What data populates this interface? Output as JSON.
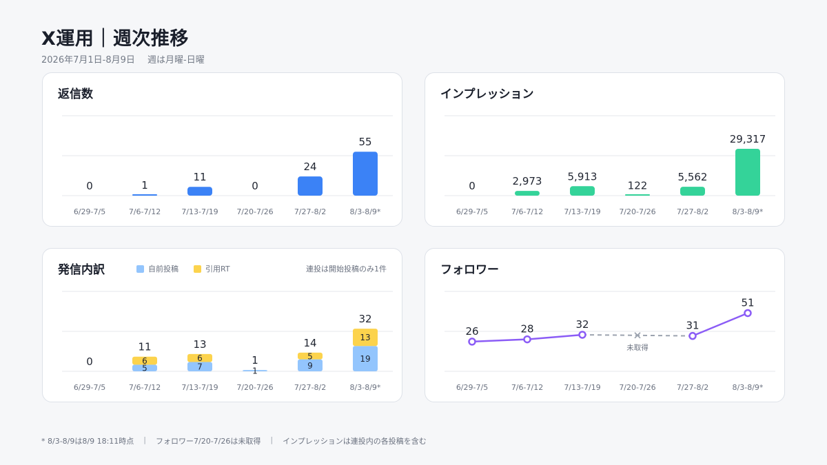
{
  "header": {
    "title": "X運用｜週次推移",
    "period": "2026年7月1日-8月9日",
    "week_note": "週は月曜-日曜"
  },
  "colors": {
    "replies": "#3b82f6",
    "impressions": "#34d399",
    "own_posts": "#93c5fd",
    "quote_rt": "#fcd34d",
    "followers": "#8b5cf6",
    "missing": "#9ca3af",
    "grid": "#e5e7eb"
  },
  "chart_data": [
    {
      "id": "replies",
      "type": "bar",
      "title": "返信数",
      "categories": [
        "6/29-7/5",
        "7/6-7/12",
        "7/13-7/19",
        "7/20-7/26",
        "7/27-8/2",
        "8/3-8/9*"
      ],
      "values": [
        0,
        1,
        11,
        0,
        24,
        55
      ],
      "labels": [
        "0",
        "1",
        "11",
        "0",
        "24",
        "55"
      ],
      "ylim": [
        0,
        100
      ]
    },
    {
      "id": "impressions",
      "type": "bar",
      "title": "インプレッション",
      "categories": [
        "6/29-7/5",
        "7/6-7/12",
        "7/13-7/19",
        "7/20-7/26",
        "7/27-8/2",
        "8/3-8/9*"
      ],
      "values": [
        0,
        2973,
        5913,
        122,
        5562,
        29317
      ],
      "labels": [
        "0",
        "2,973",
        "5,913",
        "122",
        "5,562",
        "29,317"
      ],
      "ylim": [
        0,
        50000
      ]
    },
    {
      "id": "posts",
      "type": "bar",
      "stacked": true,
      "title": "発信内訳",
      "note": "連投は開始投稿のみ1件",
      "categories": [
        "6/29-7/5",
        "7/6-7/12",
        "7/13-7/19",
        "7/20-7/26",
        "7/27-8/2",
        "8/3-8/9*"
      ],
      "series": [
        {
          "name": "自前投稿",
          "values": [
            0,
            5,
            7,
            1,
            9,
            19
          ]
        },
        {
          "name": "引用RT",
          "values": [
            0,
            6,
            6,
            0,
            5,
            13
          ]
        }
      ],
      "totals": [
        0,
        11,
        13,
        1,
        14,
        32
      ],
      "ylim": [
        0,
        60
      ]
    },
    {
      "id": "followers",
      "type": "line",
      "title": "フォロワー",
      "categories": [
        "6/29-7/5",
        "7/6-7/12",
        "7/13-7/19",
        "7/20-7/26",
        "7/27-8/2",
        "8/3-8/9*"
      ],
      "values": [
        26,
        28,
        32,
        null,
        31,
        51
      ],
      "missing_label": "未取得",
      "ylim": [
        0,
        70
      ]
    }
  ],
  "footer": {
    "note1": "* 8/3-8/9は8/9 18:11時点",
    "sep1": "|",
    "note2": "フォロワー7/20-7/26は未取得",
    "sep2": "|",
    "note3": "インプレッションは連投内の各投稿を含む"
  }
}
